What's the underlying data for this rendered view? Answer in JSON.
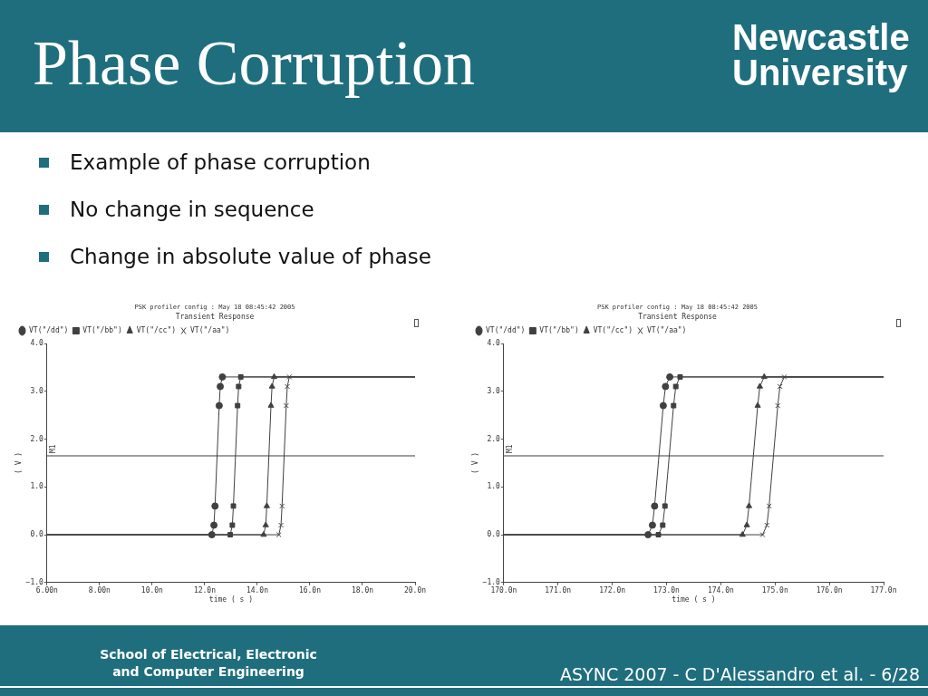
{
  "chart_data": [
    {
      "type": "other",
      "title": "Phase Corruption",
      "annotations": [
        "Example of phase corruption",
        "No change in sequence",
        "Change in absolute value of phase",
        "Newcastle University",
        "School of Electrical, Electronic and Computer Engineering",
        "ASYNC 2007 - C D'Alessandro et al. - 6/28"
      ]
    },
    {
      "type": "line",
      "subtitle": "PSK profiler config : May 18 08:45:42 2005",
      "title": "Transient Response",
      "xlabel": "time ( s )",
      "ylabel": "( V )",
      "xlim": [
        6,
        20
      ],
      "xticks": [
        {
          "value": 6,
          "label": "6.00n"
        },
        {
          "value": 8,
          "label": "8.00n"
        },
        {
          "value": 10,
          "label": "10.0n"
        },
        {
          "value": 12,
          "label": "12.0n"
        },
        {
          "value": 14,
          "label": "14.0n"
        },
        {
          "value": 16,
          "label": "16.0n"
        },
        {
          "value": 18,
          "label": "18.0n"
        },
        {
          "value": 20,
          "label": "20.0n"
        }
      ],
      "ylim": [
        -1,
        4
      ],
      "yticks": [
        {
          "value": -1,
          "label": "−1.0"
        },
        {
          "value": 0,
          "label": "0.0"
        },
        {
          "value": 1,
          "label": "1.0"
        },
        {
          "value": 2,
          "label": "2.0"
        },
        {
          "value": 3,
          "label": "3.0"
        },
        {
          "value": 4,
          "label": "4.0"
        }
      ],
      "grid": false,
      "legend": "top left",
      "ref_lines": [
        {
          "axis": "y",
          "value": 1.65,
          "label": "M1",
          "color": "#404040"
        }
      ],
      "series": [
        {
          "name": "VT(\"/dd\")",
          "color": "#404040",
          "marker": "circle",
          "x": [
            6,
            12.27,
            12.35,
            12.39,
            12.55,
            12.59,
            12.67,
            20
          ],
          "values": [
            0,
            0,
            0.2,
            0.6,
            2.7,
            3.1,
            3.3,
            3.3
          ]
        },
        {
          "name": "VT(\"/bb\")",
          "color": "#404040",
          "marker": "square",
          "x": [
            6,
            12.97,
            13.05,
            13.09,
            13.25,
            13.29,
            13.37,
            20
          ],
          "values": [
            0,
            0,
            0.2,
            0.6,
            2.7,
            3.1,
            3.3,
            3.3
          ]
        },
        {
          "name": "VT(\"/cc\")",
          "color": "#404040",
          "marker": "triangle",
          "x": [
            6,
            14.24,
            14.32,
            14.36,
            14.52,
            14.56,
            14.64,
            20
          ],
          "values": [
            0,
            0,
            0.2,
            0.6,
            2.7,
            3.1,
            3.3,
            3.3
          ]
        },
        {
          "name": "VT(\"/aa\")",
          "color": "#404040",
          "marker": "cross",
          "x": [
            6,
            14.82,
            14.9,
            14.94,
            15.1,
            15.14,
            15.22,
            20
          ],
          "values": [
            0,
            0,
            0.2,
            0.6,
            2.7,
            3.1,
            3.3,
            3.3
          ]
        }
      ]
    },
    {
      "type": "line",
      "subtitle": "PSK profiler config : May 18 08:45:42 2005",
      "title": "Transient Response",
      "xlabel": "time ( s )",
      "ylabel": "( V )",
      "xlim": [
        170,
        177
      ],
      "xticks": [
        {
          "value": 170,
          "label": "170.0n"
        },
        {
          "value": 171,
          "label": "171.0n"
        },
        {
          "value": 172,
          "label": "172.0n"
        },
        {
          "value": 173,
          "label": "173.0n"
        },
        {
          "value": 174,
          "label": "174.0n"
        },
        {
          "value": 175,
          "label": "175.0n"
        },
        {
          "value": 176,
          "label": "176.0n"
        },
        {
          "value": 177,
          "label": "177.0n"
        }
      ],
      "ylim": [
        -1,
        4
      ],
      "yticks": [
        {
          "value": -1,
          "label": "−1.0"
        },
        {
          "value": 0,
          "label": "0.0"
        },
        {
          "value": 1,
          "label": "1.0"
        },
        {
          "value": 2,
          "label": "2.0"
        },
        {
          "value": 3,
          "label": "3.0"
        },
        {
          "value": 4,
          "label": "4.0"
        }
      ],
      "grid": false,
      "legend": "top left",
      "ref_lines": [
        {
          "axis": "y",
          "value": 1.65,
          "label": "M1",
          "color": "#404040"
        }
      ],
      "series": [
        {
          "name": "VT(\"/dd\")",
          "color": "#404040",
          "marker": "circle",
          "x": [
            170,
            172.66,
            172.74,
            172.78,
            172.94,
            172.98,
            173.06,
            177
          ],
          "values": [
            0,
            0,
            0.2,
            0.6,
            2.7,
            3.1,
            3.3,
            3.3
          ]
        },
        {
          "name": "VT(\"/bb\")",
          "color": "#404040",
          "marker": "square",
          "x": [
            170,
            172.85,
            172.93,
            172.97,
            173.13,
            173.17,
            173.25,
            177
          ],
          "values": [
            0,
            0,
            0.2,
            0.6,
            2.7,
            3.1,
            3.3,
            3.3
          ]
        },
        {
          "name": "VT(\"/cc\")",
          "color": "#404040",
          "marker": "triangle",
          "x": [
            170,
            174.4,
            174.48,
            174.52,
            174.68,
            174.72,
            174.8,
            177
          ],
          "values": [
            0,
            0,
            0.2,
            0.6,
            2.7,
            3.1,
            3.3,
            3.3
          ]
        },
        {
          "name": "VT(\"/aa\")",
          "color": "#404040",
          "marker": "cross",
          "x": [
            170,
            174.77,
            174.85,
            174.89,
            175.05,
            175.09,
            175.17,
            177
          ],
          "values": [
            0,
            0,
            0.2,
            0.6,
            2.7,
            3.1,
            3.3,
            3.3
          ]
        }
      ]
    }
  ]
}
